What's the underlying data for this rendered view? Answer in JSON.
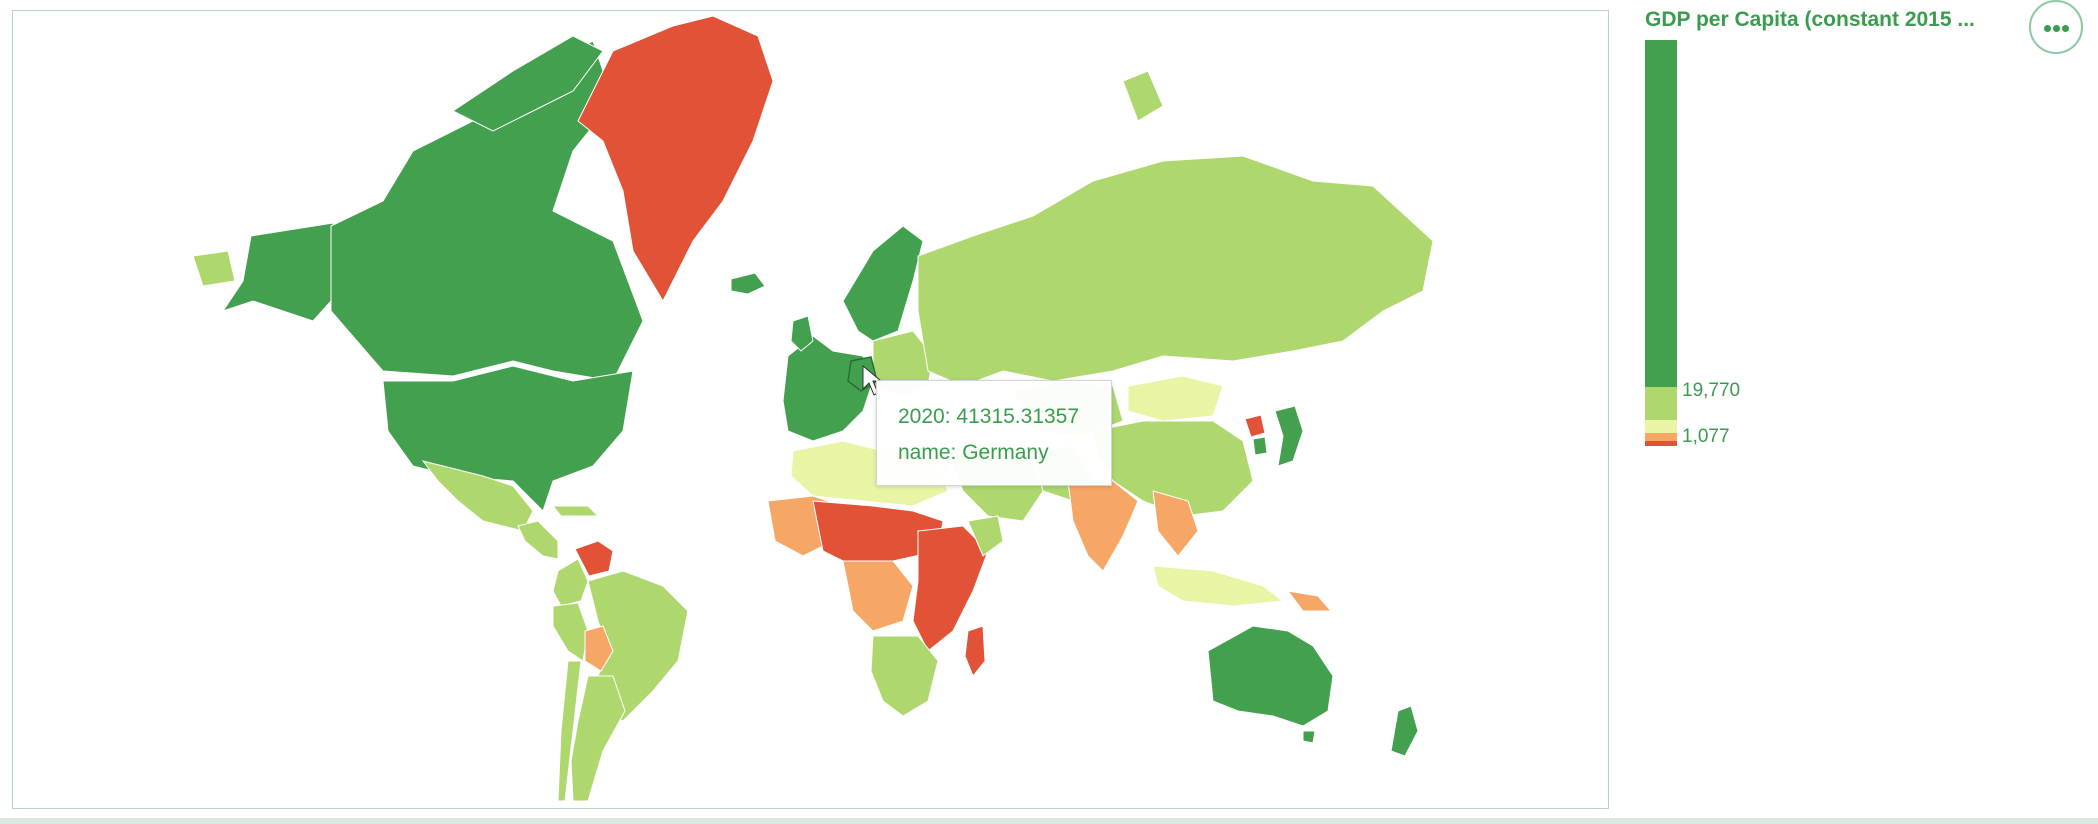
{
  "legend": {
    "title": "GDP per Capita (constant 2015 ...",
    "upper_label": "19,770",
    "lower_label": "1,077",
    "colors": {
      "high": "#43a04f",
      "upper_mid": "#aed86e",
      "mid": "#e9f4a4",
      "lower_mid": "#f6a665",
      "low": "#e15236"
    }
  },
  "tooltip": {
    "year_label": "2020:",
    "year_value": "41315.31357",
    "name_label": "name:",
    "name_value": "Germany"
  },
  "menu": {
    "icon": "more-horizontal-icon"
  },
  "map": {
    "projection": "mercator",
    "hovered_country": "Germany",
    "regions": [
      {
        "name": "Canada",
        "band": "high"
      },
      {
        "name": "Alaska",
        "band": "high"
      },
      {
        "name": "United States",
        "band": "high"
      },
      {
        "name": "Greenland",
        "band": "low"
      },
      {
        "name": "Mexico",
        "band": "upper_mid"
      },
      {
        "name": "Central America",
        "band": "upper_mid"
      },
      {
        "name": "Venezuela",
        "band": "low"
      },
      {
        "name": "Colombia",
        "band": "upper_mid"
      },
      {
        "name": "Brazil",
        "band": "upper_mid"
      },
      {
        "name": "Peru",
        "band": "upper_mid"
      },
      {
        "name": "Bolivia",
        "band": "lower_mid"
      },
      {
        "name": "Chile",
        "band": "upper_mid"
      },
      {
        "name": "Argentina",
        "band": "upper_mid"
      },
      {
        "name": "Iceland",
        "band": "high"
      },
      {
        "name": "Scandinavia",
        "band": "high"
      },
      {
        "name": "Western Europe",
        "band": "high"
      },
      {
        "name": "Eastern Europe",
        "band": "upper_mid"
      },
      {
        "name": "Russia",
        "band": "upper_mid"
      },
      {
        "name": "Kazakhstan",
        "band": "upper_mid"
      },
      {
        "name": "Mongolia",
        "band": "mid"
      },
      {
        "name": "China",
        "band": "upper_mid"
      },
      {
        "name": "India",
        "band": "lower_mid"
      },
      {
        "name": "Southeast Asia",
        "band": "lower_mid"
      },
      {
        "name": "Japan",
        "band": "high"
      },
      {
        "name": "South Korea",
        "band": "high"
      },
      {
        "name": "North Korea",
        "band": "low"
      },
      {
        "name": "Middle East",
        "band": "upper_mid"
      },
      {
        "name": "North Africa",
        "band": "mid"
      },
      {
        "name": "West Africa",
        "band": "lower_mid"
      },
      {
        "name": "Sahel",
        "band": "low"
      },
      {
        "name": "Central Africa",
        "band": "lower_mid"
      },
      {
        "name": "East Africa",
        "band": "low"
      },
      {
        "name": "Southern Africa",
        "band": "upper_mid"
      },
      {
        "name": "Madagascar",
        "band": "low"
      },
      {
        "name": "Indonesia",
        "band": "mid"
      },
      {
        "name": "Papua New Guinea",
        "band": "lower_mid"
      },
      {
        "name": "Australia",
        "band": "high"
      },
      {
        "name": "New Zealand",
        "band": "high"
      }
    ]
  }
}
